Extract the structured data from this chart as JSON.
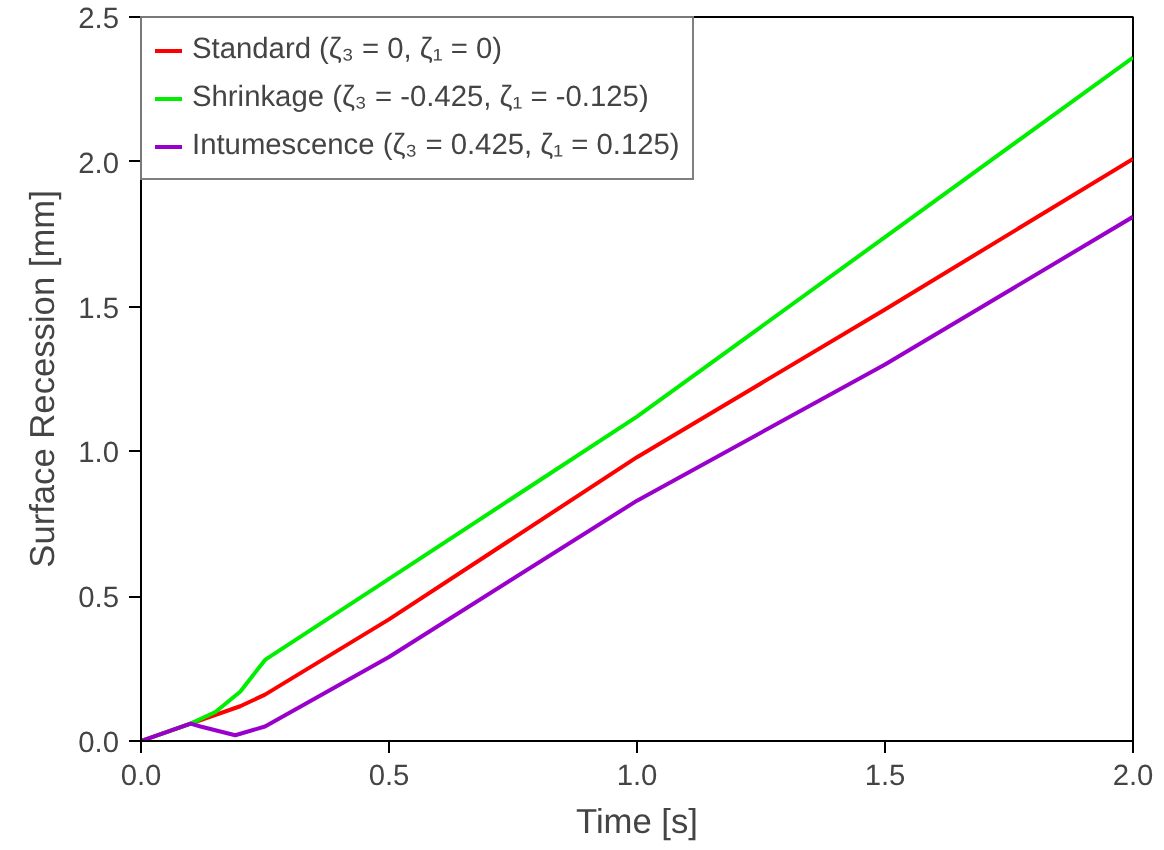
{
  "chart_data": {
    "type": "line",
    "xlabel": "Time [s]",
    "ylabel": "Surface Recession [mm]",
    "xlim": [
      0,
      2.0
    ],
    "ylim": [
      0,
      2.5
    ],
    "xticks": [
      {
        "value": 0,
        "label": "0.0"
      },
      {
        "value": 0.5,
        "label": "0.5"
      },
      {
        "value": 1,
        "label": "1.0"
      },
      {
        "value": 1.5,
        "label": "1.5"
      },
      {
        "value": 2,
        "label": "2.0"
      }
    ],
    "yticks": [
      {
        "value": 0,
        "label": "0.0"
      },
      {
        "value": 0.5,
        "label": "0.5"
      },
      {
        "value": 1,
        "label": "1.0"
      },
      {
        "value": 1.5,
        "label": "1.5"
      },
      {
        "value": 2,
        "label": "2.0"
      },
      {
        "value": 2.5,
        "label": "2.5"
      }
    ],
    "grid": false,
    "legend": "top left",
    "marker": "none",
    "line_style": "solid",
    "series": [
      {
        "name": "Standard (ζ₃ = 0, ζ₁ = 0)",
        "color": "#ff0000",
        "x": [
          0,
          0.1,
          0.2,
          0.25,
          0.5,
          1.0,
          1.5,
          2.0
        ],
        "values": [
          0,
          0.06,
          0.12,
          0.16,
          0.42,
          0.98,
          1.49,
          2.01
        ]
      },
      {
        "name": "Shrinkage (ζ₃ = -0.425, ζ₁ = -0.125)",
        "color": "#00ee00",
        "x": [
          0,
          0.1,
          0.15,
          0.2,
          0.25,
          0.5,
          1.0,
          1.5,
          2.0
        ],
        "values": [
          0,
          0.06,
          0.1,
          0.17,
          0.28,
          0.56,
          1.12,
          1.74,
          2.36
        ]
      },
      {
        "name": "Intumescence (ζ₃ = 0.425, ζ₁ = 0.125)",
        "color": "#9900cc",
        "x": [
          0,
          0.1,
          0.12,
          0.19,
          0.25,
          0.5,
          1.0,
          1.5,
          2.0
        ],
        "values": [
          0,
          0.06,
          0.05,
          0.02,
          0.05,
          0.29,
          0.83,
          1.3,
          1.81
        ]
      }
    ]
  }
}
